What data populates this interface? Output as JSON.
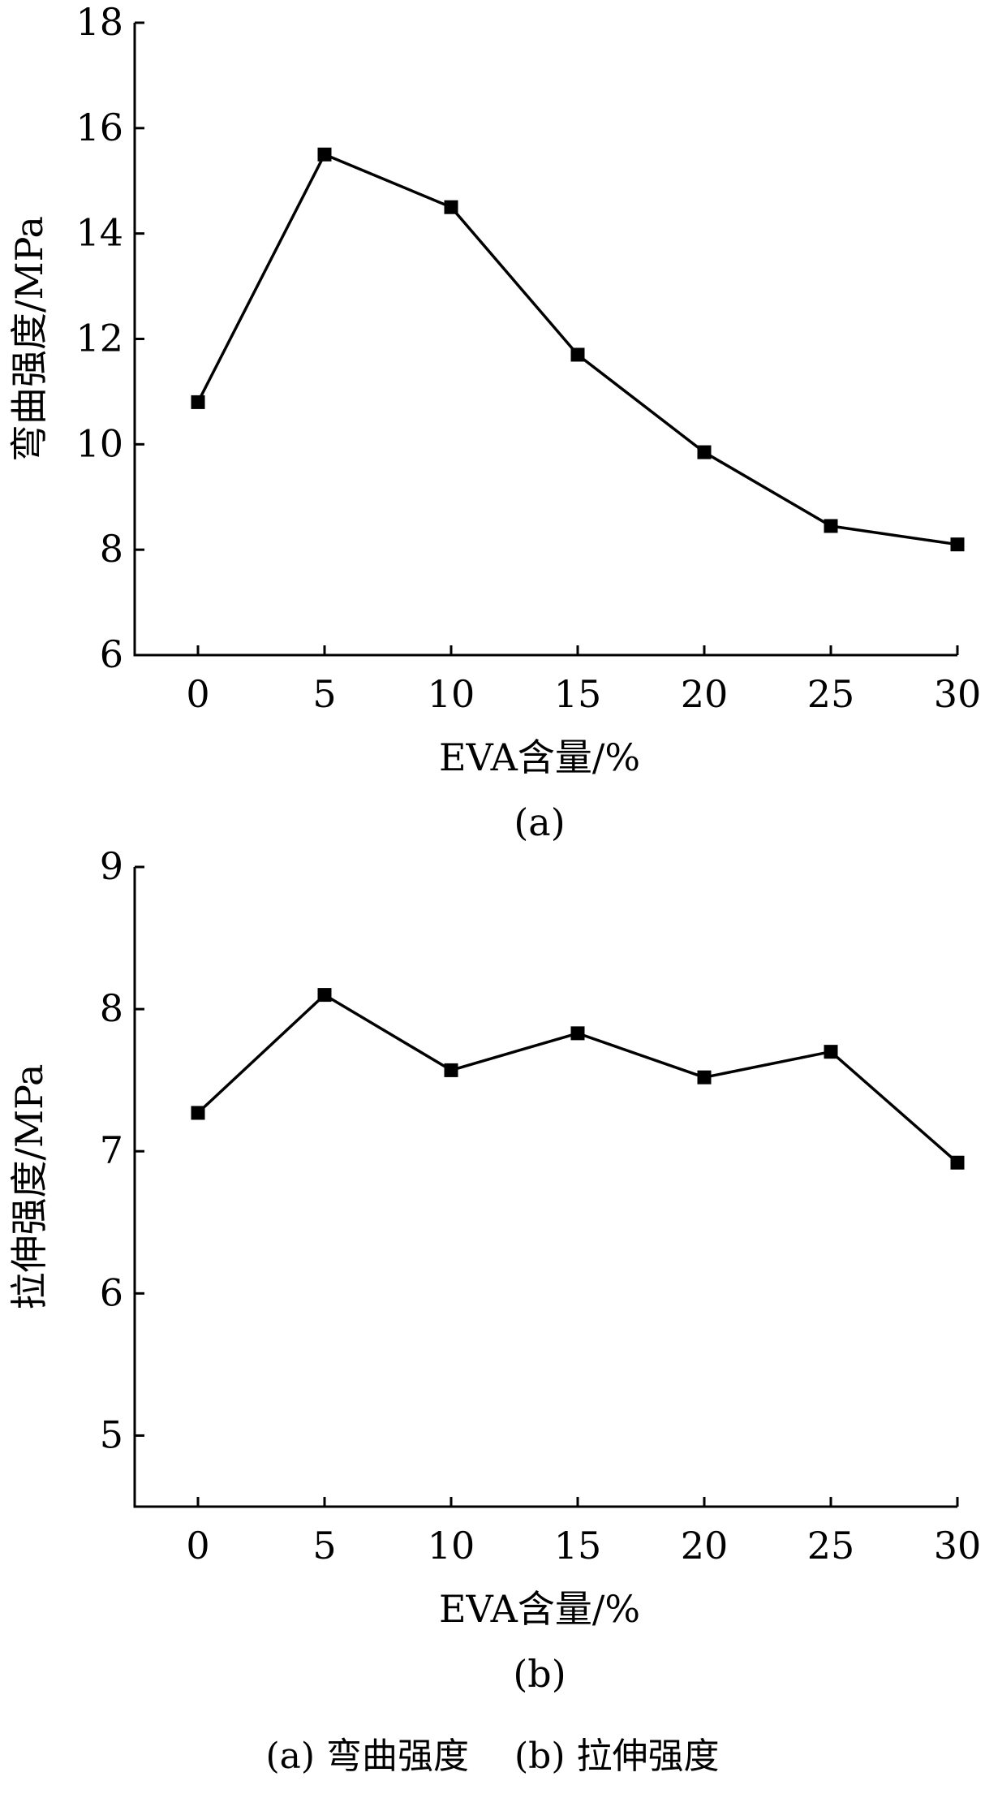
{
  "chart_data": [
    {
      "type": "line",
      "title": "",
      "panel_label": "(a)",
      "xlabel": "EVA含量/%",
      "ylabel": "弯曲强度/MPa",
      "x": [
        0,
        5,
        10,
        15,
        20,
        25,
        30
      ],
      "y": [
        10.8,
        15.5,
        14.5,
        11.7,
        9.85,
        8.45,
        8.1
      ],
      "xlim": [
        -2.5,
        30
      ],
      "ylim": [
        6,
        18
      ],
      "xticks": [
        0,
        5,
        10,
        15,
        20,
        25,
        30
      ],
      "yticks": [
        6,
        8,
        10,
        12,
        14,
        16,
        18
      ],
      "grid": false,
      "marker": "square",
      "color": "#000000"
    },
    {
      "type": "line",
      "title": "",
      "panel_label": "(b)",
      "xlabel": "EVA含量/%",
      "ylabel": "拉伸强度/MPa",
      "x": [
        0,
        5,
        10,
        15,
        20,
        25,
        30
      ],
      "y": [
        7.27,
        8.1,
        7.57,
        7.83,
        7.52,
        7.7,
        6.92
      ],
      "xlim": [
        -2.5,
        30
      ],
      "ylim": [
        4.5,
        9
      ],
      "xticks": [
        0,
        5,
        10,
        15,
        20,
        25,
        30
      ],
      "yticks": [
        5,
        6,
        7,
        8,
        9
      ],
      "grid": false,
      "marker": "square",
      "color": "#000000"
    }
  ],
  "caption": "(a) 弯曲强度    (b) 拉伸强度"
}
